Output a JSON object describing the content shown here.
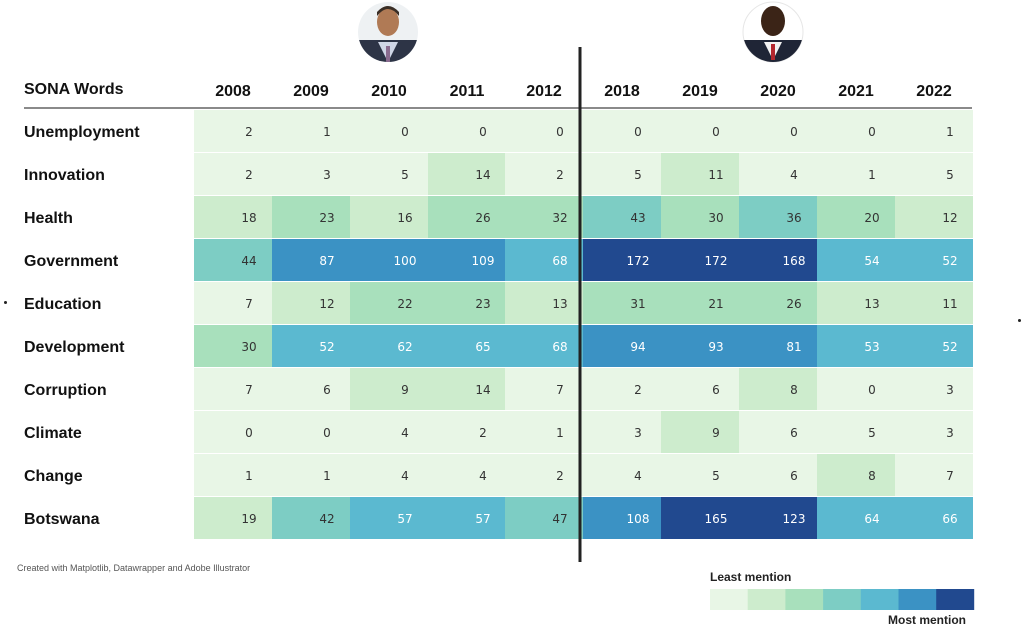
{
  "chart_data": {
    "type": "heatmap",
    "corner_label": "SONA Words",
    "columns": [
      "2008",
      "2009",
      "2010",
      "2011",
      "2012",
      "2018",
      "2019",
      "2020",
      "2021",
      "2022"
    ],
    "rows": [
      "Unemployment",
      "Innovation",
      "Health",
      "Government",
      "Education",
      "Development",
      "Corruption",
      "Climate",
      "Change",
      "Botswana"
    ],
    "values": [
      [
        2,
        1,
        0,
        0,
        0,
        0,
        0,
        0,
        0,
        1
      ],
      [
        2,
        3,
        5,
        14,
        2,
        5,
        11,
        4,
        1,
        5
      ],
      [
        18,
        23,
        16,
        26,
        32,
        43,
        30,
        36,
        20,
        12
      ],
      [
        44,
        87,
        100,
        109,
        68,
        172,
        172,
        168,
        54,
        52
      ],
      [
        7,
        12,
        22,
        23,
        13,
        31,
        21,
        26,
        13,
        11
      ],
      [
        30,
        52,
        62,
        65,
        68,
        94,
        93,
        81,
        53,
        52
      ],
      [
        7,
        6,
        9,
        14,
        7,
        2,
        6,
        8,
        0,
        3
      ],
      [
        0,
        0,
        4,
        2,
        1,
        3,
        9,
        6,
        5,
        3
      ],
      [
        1,
        1,
        4,
        4,
        2,
        4,
        5,
        6,
        8,
        7
      ],
      [
        19,
        42,
        57,
        57,
        47,
        108,
        165,
        123,
        64,
        66
      ]
    ],
    "legend": {
      "low_label": "Least mention",
      "high_label": "Most mention",
      "colors": [
        "#e8f6e6",
        "#cdeccd",
        "#a8e0bc",
        "#7dcdc4",
        "#5bb9d0",
        "#3b92c4",
        "#21498f"
      ]
    },
    "color_bins": [
      8,
      20,
      35,
      50,
      75,
      110
    ]
  },
  "footnote": "Created with  Matplotlib, Datawrapper and Adobe Illustrator"
}
